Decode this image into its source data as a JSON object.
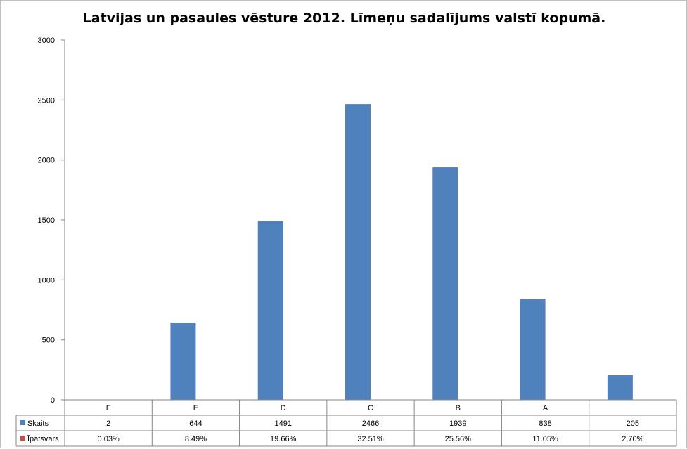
{
  "chart_data": {
    "type": "bar",
    "title": "Latvijas un pasaules vēsture 2012. Līmeņu sadalījums valstī kopumā.",
    "categories": [
      "F",
      "E",
      "D",
      "C",
      "B",
      "A",
      ""
    ],
    "ylim": [
      0,
      3000
    ],
    "yticks": [
      "0",
      "500",
      "1000",
      "1500",
      "2000",
      "2500",
      "3000"
    ],
    "grid": false,
    "data_table": true,
    "series": [
      {
        "name": "Skaits",
        "color": "#4f81bd",
        "values": [
          2,
          644,
          1491,
          2466,
          1939,
          838,
          205
        ],
        "labels": [
          "2",
          "644",
          "1491",
          "2466",
          "1939",
          "838",
          "205"
        ]
      },
      {
        "name": "Īpatsvars",
        "color": "#c0504d",
        "values": [
          0.0003,
          0.0849,
          0.1966,
          0.3251,
          0.2556,
          0.1105,
          0.027
        ],
        "labels": [
          "0.03%",
          "8.49%",
          "19.66%",
          "32.51%",
          "25.56%",
          "11.05%",
          "2.70%"
        ]
      }
    ]
  }
}
